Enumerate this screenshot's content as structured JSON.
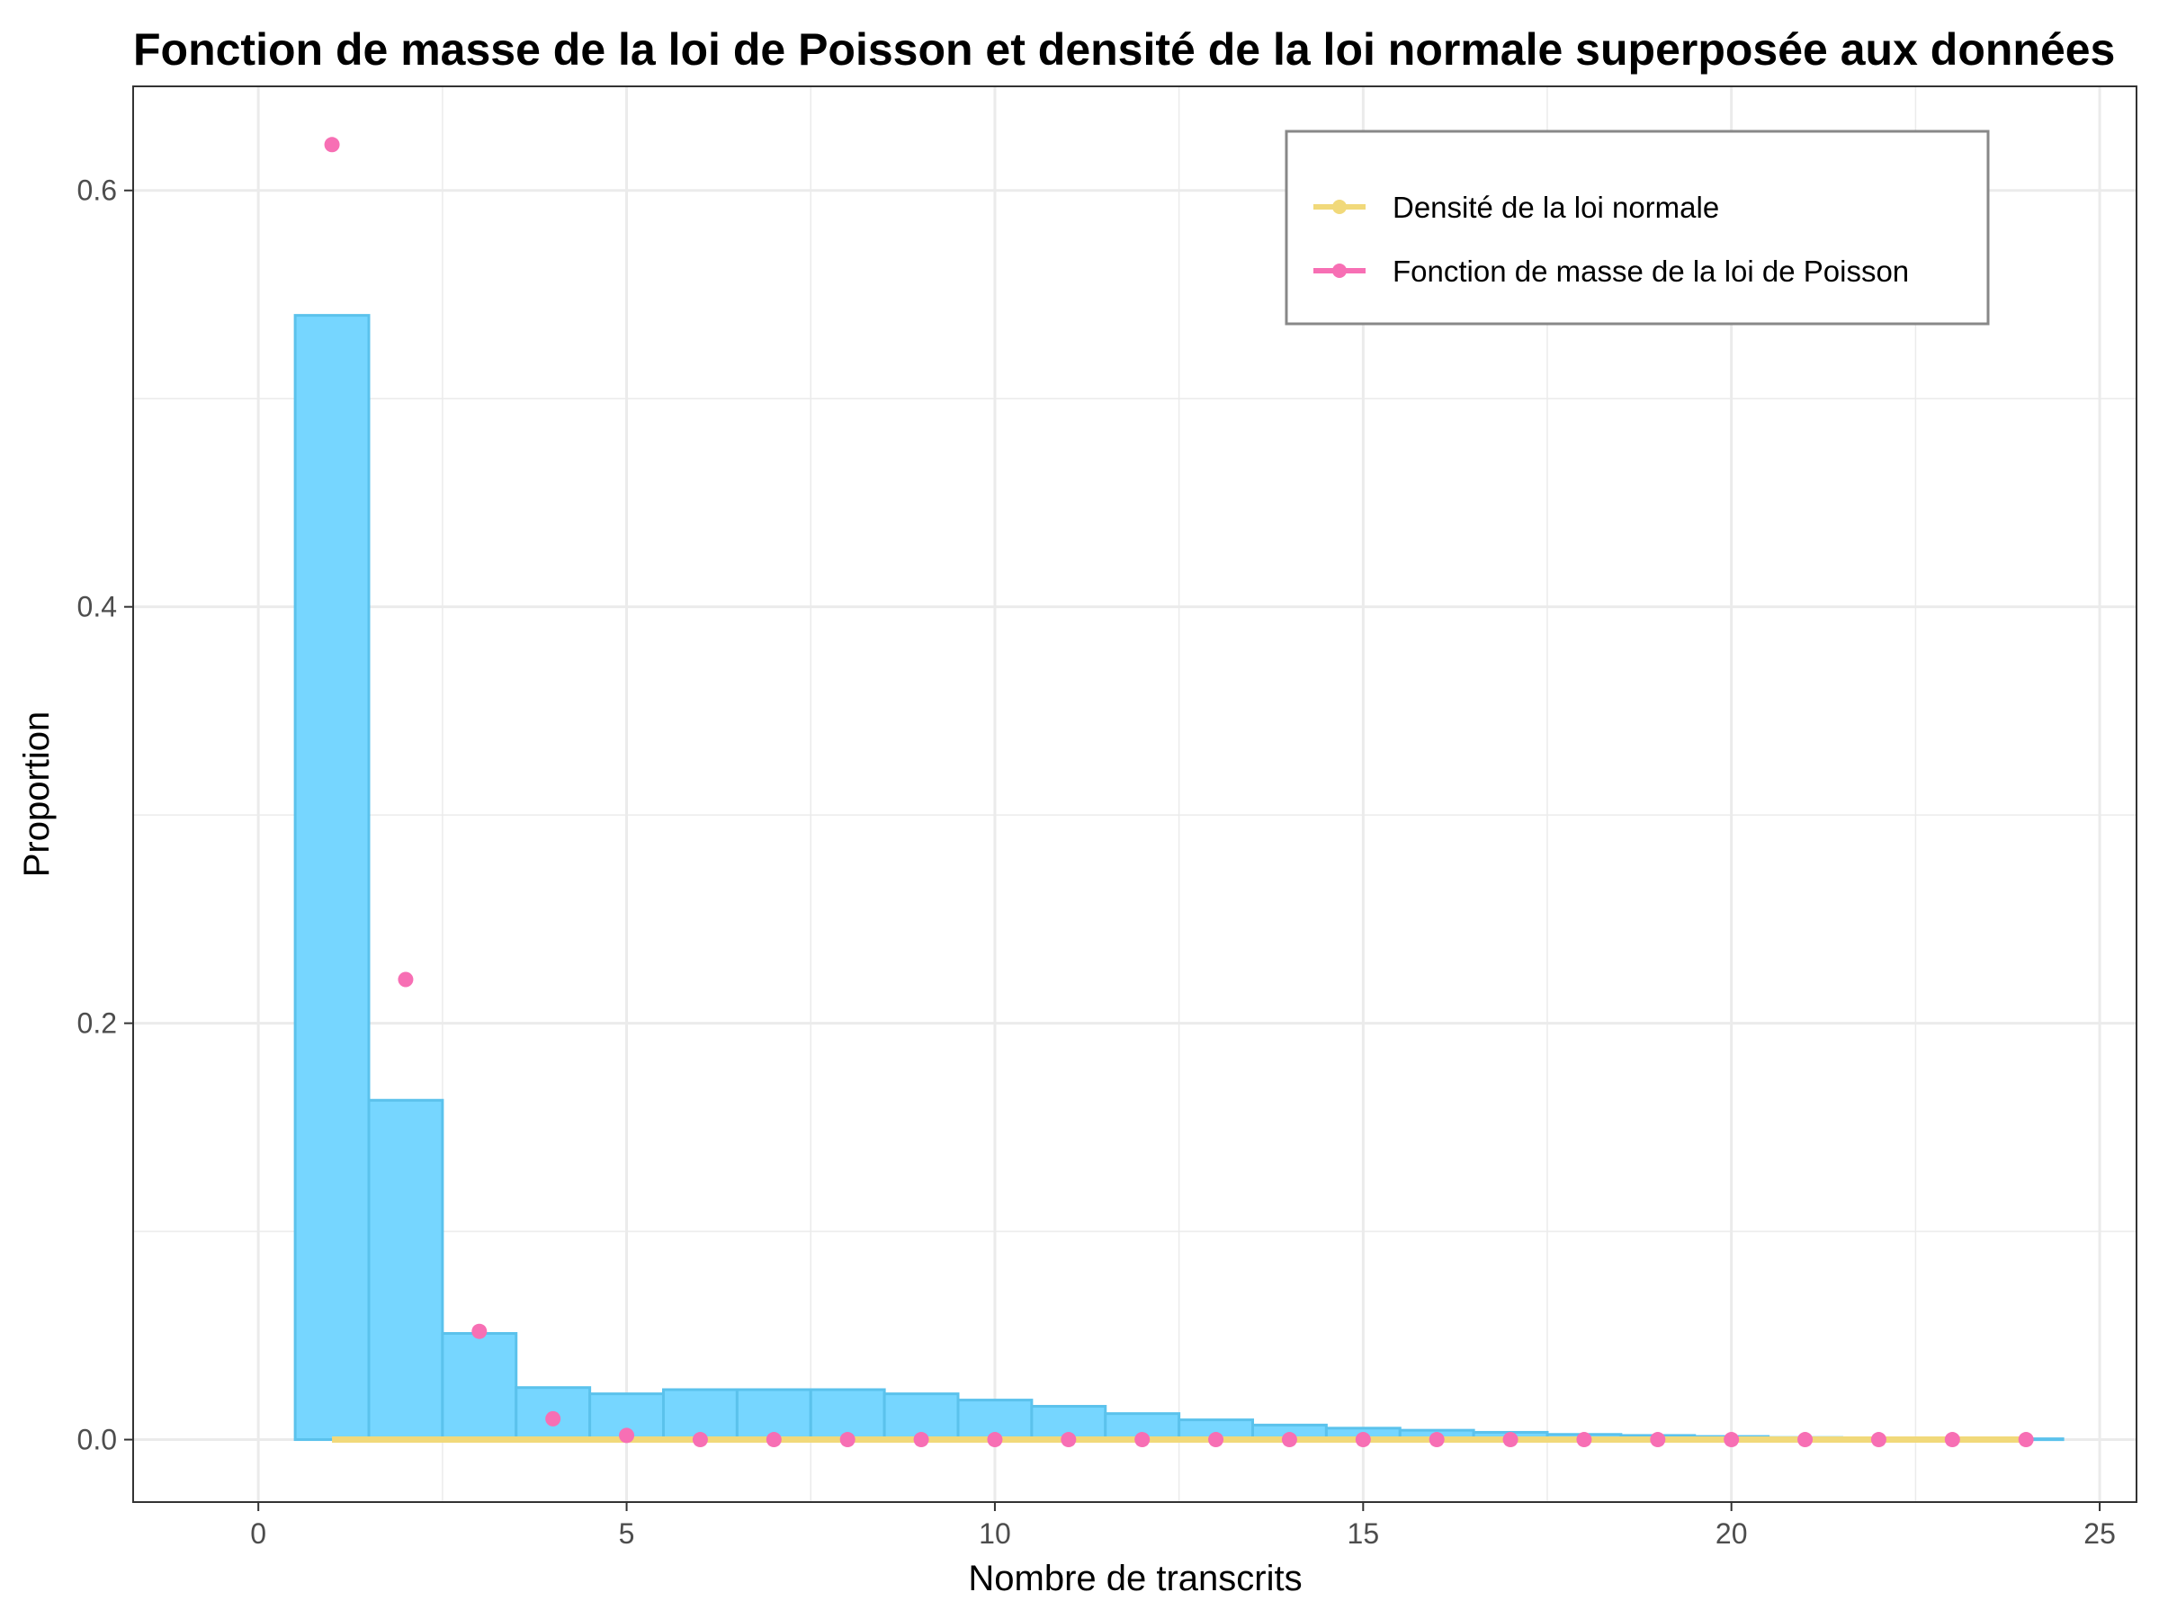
{
  "chart_data": {
    "type": "bar",
    "title": "Fonction de masse de la loi de Poisson et densité de la loi normale superposée aux données",
    "xlabel": "Nombre de transcrits",
    "ylabel": "Proportion",
    "xlim": [
      -1.7,
      25.5
    ],
    "ylim": [
      -0.03,
      0.65
    ],
    "x_ticks": [
      0,
      5,
      10,
      15,
      20,
      25
    ],
    "x_tick_labels": [
      "0",
      "5",
      "10",
      "15",
      "20",
      "25"
    ],
    "y_ticks": [
      0.0,
      0.2,
      0.4,
      0.6
    ],
    "y_tick_labels": [
      "0.0",
      "0.2",
      "0.4",
      "0.6"
    ],
    "grid": true,
    "legend_position": "top-right",
    "colors": {
      "histogram_fill": "#76D6FF",
      "histogram_outline": "#5BC2EC",
      "normal_density": "#F1D97A",
      "poisson_pmf": "#F76FB4",
      "grid": "#EBEBEB",
      "panel_border": "#333333"
    },
    "histogram": {
      "bin_width": 1,
      "x": [
        1,
        2,
        3,
        4,
        5,
        6,
        7,
        8,
        9,
        10,
        11,
        12,
        13,
        14,
        15,
        16,
        17,
        18,
        19,
        20,
        21,
        22,
        23,
        24
      ],
      "values": [
        0.54,
        0.163,
        0.051,
        0.025,
        0.022,
        0.024,
        0.024,
        0.024,
        0.022,
        0.019,
        0.016,
        0.0125,
        0.0095,
        0.007,
        0.0055,
        0.0045,
        0.0035,
        0.0025,
        0.002,
        0.0015,
        0.001,
        0.0008,
        0.0006,
        0.0004
      ]
    },
    "series": [
      {
        "name": "Densité de la loi normale",
        "type": "line",
        "x": [
          1,
          2,
          3,
          4,
          5,
          6,
          7,
          8,
          9,
          10,
          11,
          12,
          13,
          14,
          15,
          16,
          17,
          18,
          19,
          20,
          21,
          22,
          23,
          24
        ],
        "values": [
          0,
          0,
          0,
          0,
          0,
          0,
          0,
          0,
          0,
          0,
          0,
          0,
          0,
          0,
          0,
          0,
          0,
          0,
          0,
          0,
          0,
          0,
          0,
          0
        ]
      },
      {
        "name": "Fonction de masse de la loi de Poisson",
        "type": "scatter",
        "x": [
          1,
          2,
          3,
          4,
          5,
          6,
          7,
          8,
          9,
          10,
          11,
          12,
          13,
          14,
          15,
          16,
          17,
          18,
          19,
          20,
          21,
          22,
          23,
          24
        ],
        "values": [
          0.622,
          0.221,
          0.052,
          0.01,
          0.002,
          0,
          0,
          0,
          0,
          0,
          0,
          0,
          0,
          0,
          0,
          0,
          0,
          0,
          0,
          0,
          0,
          0,
          0,
          0
        ]
      }
    ]
  }
}
